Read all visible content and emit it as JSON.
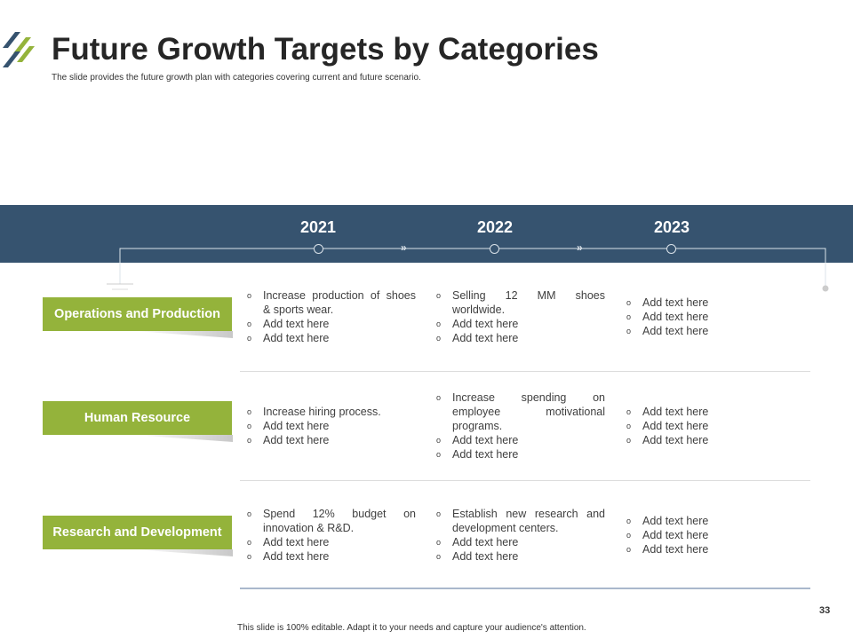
{
  "header": {
    "title": "Future Growth Targets by Categories",
    "subtitle": "The slide provides the future growth plan with categories covering current and future scenario."
  },
  "years": [
    "2021",
    "2022",
    "2023"
  ],
  "rows": [
    {
      "category": "Operations and Production",
      "cols": [
        [
          "Increase production of shoes & sports wear.",
          "Add text here",
          "Add text here"
        ],
        [
          "Selling 12 MM shoes worldwide.",
          "Add text here",
          "Add text here"
        ],
        [
          "Add text here",
          "Add text here",
          "Add text here"
        ]
      ]
    },
    {
      "category": "Human Resource",
      "cols": [
        [
          "Increase hiring process.",
          "Add text here",
          "Add text here"
        ],
        [
          "Increase spending on employee motivational programs.",
          "Add text here",
          "Add text here"
        ],
        [
          "Add text here",
          "Add text here",
          "Add text here"
        ]
      ]
    },
    {
      "category": "Research and Development",
      "cols": [
        [
          "Spend 12% budget on innovation & R&D.",
          "Add text here",
          "Add text here"
        ],
        [
          "Establish new research and development centers.",
          "Add text here",
          "Add text here"
        ],
        [
          "Add text here",
          "Add text here",
          "Add text here"
        ]
      ]
    }
  ],
  "footer": {
    "note": "This slide is 100% editable. Adapt it to your needs and capture your audience's attention.",
    "page": "33"
  },
  "colors": {
    "band": "#36536f",
    "accent": "#94b33b"
  }
}
